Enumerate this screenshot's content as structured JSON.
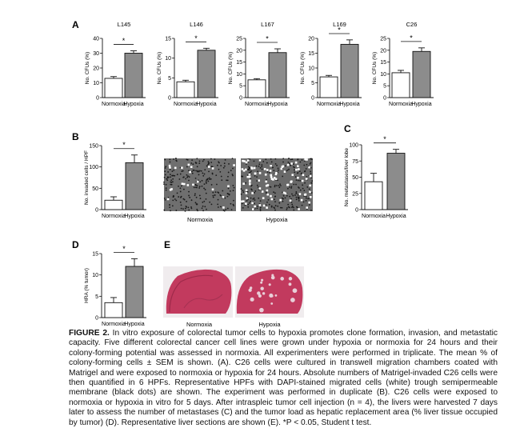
{
  "figure": {
    "panel_letters": {
      "A": "A",
      "B": "B",
      "C": "C",
      "D": "D",
      "E": "E"
    },
    "significance_mark": "*",
    "micrograph_labels": {
      "left": "Normoxia",
      "right": "Hypoxia"
    },
    "section_labels": {
      "left": "Normoxia",
      "right": "Hypoxia"
    }
  },
  "caption": {
    "lead": "FIGURE 2.",
    "body": "In vitro exposure of colorectal tumor cells to hypoxia promotes clone formation, invasion, and metastatic capacity. Five different colorectal cancer cell lines were grown under hypoxia or normoxia for 24 hours and their colony-forming potential was assessed in normoxia. All experimenters were performed in triplicate. The mean % of colony-forming cells ± SEM is shown. (A). C26 cells were cultured in transwell migration chambers coated with Matrigel and were exposed to normoxia or hypoxia for 24 hours. Absolute numbers of Matrigel-invaded C26 cells were then quantified in 6 HPFs. Representative HPFs with DAPI-stained migrated cells (white) trough semipermeable membrane (black dots) are shown. The experiment was performed in duplicate (B). C26 cells were exposed to normoxia or hypoxia in vitro for 5 days. After intraspleic tumor cell injection (n = 4), the livers were harvested 7 days later to assess the number of metastases (C) and the tumor load as hepatic replacement area (% liver tissue occupied by tumor) (D). Representative liver sections are shown (E). *P < 0.05, Student t test."
  },
  "colors": {
    "normoxia_bar": "#ffffff",
    "hypoxia_bar": "#8c8c8c",
    "liver_tissue": "#c23a5e"
  },
  "chart_data": [
    {
      "type": "bar",
      "panel": "A",
      "title": "L145",
      "categories": [
        "Normoxia",
        "Hypoxia"
      ],
      "values": [
        13,
        30
      ],
      "errors": [
        1.2,
        1.6
      ],
      "ylabel": "No. CFUs (%)",
      "ylim": [
        0,
        40
      ],
      "yticks": [
        0,
        10,
        20,
        30,
        40
      ],
      "significant": true
    },
    {
      "type": "bar",
      "panel": "A",
      "title": "L146",
      "categories": [
        "Normoxia",
        "Hypoxia"
      ],
      "values": [
        4,
        12
      ],
      "errors": [
        0.4,
        0.5
      ],
      "ylabel": "No. CFUs (%)",
      "ylim": [
        0,
        15
      ],
      "yticks": [
        0,
        5,
        10,
        15
      ],
      "significant": true
    },
    {
      "type": "bar",
      "panel": "A",
      "title": "L167",
      "categories": [
        "Normoxia",
        "Hypoxia"
      ],
      "values": [
        7.5,
        19
      ],
      "errors": [
        0.5,
        1.6
      ],
      "ylabel": "No. CFUs (%)",
      "ylim": [
        0,
        25
      ],
      "yticks": [
        0,
        5,
        10,
        15,
        20,
        25
      ],
      "significant": true
    },
    {
      "type": "bar",
      "panel": "A",
      "title": "L169",
      "categories": [
        "Normoxia",
        "Hypoxia"
      ],
      "values": [
        7,
        18
      ],
      "errors": [
        0.5,
        1.5
      ],
      "ylabel": "No. CFUs (%)",
      "ylim": [
        0,
        20
      ],
      "yticks": [
        0,
        5,
        10,
        15,
        20
      ],
      "significant": true
    },
    {
      "type": "bar",
      "panel": "A",
      "title": "C26",
      "categories": [
        "Normoxia",
        "Hypoxia"
      ],
      "values": [
        10.5,
        19.5
      ],
      "errors": [
        1,
        1.5
      ],
      "ylabel": "No. CFUs (%)",
      "ylim": [
        0,
        25
      ],
      "yticks": [
        0,
        5,
        10,
        15,
        20,
        25
      ],
      "significant": true
    },
    {
      "type": "bar",
      "panel": "B",
      "title": "",
      "categories": [
        "Normoxia",
        "Hypoxia"
      ],
      "values": [
        22,
        110
      ],
      "errors": [
        8,
        18
      ],
      "ylabel": "No. invaded cells / HPF",
      "ylim": [
        0,
        150
      ],
      "yticks": [
        0,
        50,
        100,
        150
      ],
      "significant": true
    },
    {
      "type": "bar",
      "panel": "C",
      "title": "",
      "categories": [
        "Normoxia",
        "Hypoxia"
      ],
      "values": [
        43,
        87
      ],
      "errors": [
        13,
        6
      ],
      "ylabel": "No. metastases/liver lobe",
      "ylim": [
        0,
        100
      ],
      "yticks": [
        0,
        25,
        50,
        75,
        100
      ],
      "significant": true
    },
    {
      "type": "bar",
      "panel": "D",
      "title": "",
      "categories": [
        "Normoxia",
        "Hypoxia"
      ],
      "values": [
        3.5,
        12
      ],
      "errors": [
        1.2,
        1.8
      ],
      "ylabel": "HRA (% tumor)",
      "ylim": [
        0,
        15
      ],
      "yticks": [
        0,
        5,
        10,
        15
      ],
      "significant": true
    }
  ]
}
